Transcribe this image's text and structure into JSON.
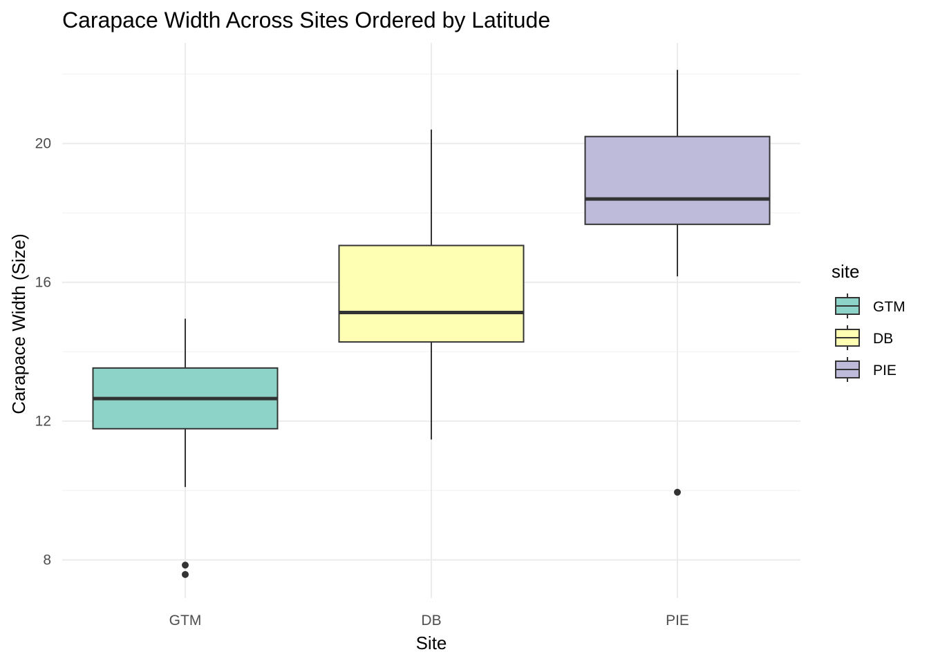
{
  "chart_data": {
    "type": "boxplot",
    "title": "Carapace Width Across Sites Ordered by Latitude",
    "xlabel": "Site",
    "ylabel": "Carapace Width (Size)",
    "categories": [
      "GTM",
      "DB",
      "PIE"
    ],
    "ylim": [
      6.9,
      22.9
    ],
    "yticks": [
      8,
      12,
      16,
      20
    ],
    "grid": true,
    "legend": {
      "title": "site",
      "position": "right",
      "entries": [
        "GTM",
        "DB",
        "PIE"
      ]
    },
    "series": [
      {
        "category": "GTM",
        "whisker_low": 10.1,
        "q1": 11.78,
        "median": 12.65,
        "q3": 13.53,
        "whisker_high": 14.95,
        "outliers": [
          7.85,
          7.58
        ],
        "color": "#8dd3c7"
      },
      {
        "category": "DB",
        "whisker_low": 11.47,
        "q1": 14.28,
        "median": 15.13,
        "q3": 17.06,
        "whisker_high": 20.4,
        "outliers": [],
        "color": "#ffffb3"
      },
      {
        "category": "PIE",
        "whisker_low": 16.17,
        "q1": 17.67,
        "median": 18.4,
        "q3": 20.2,
        "whisker_high": 22.12,
        "outliers": [
          9.95
        ],
        "color": "#bebada"
      }
    ]
  }
}
